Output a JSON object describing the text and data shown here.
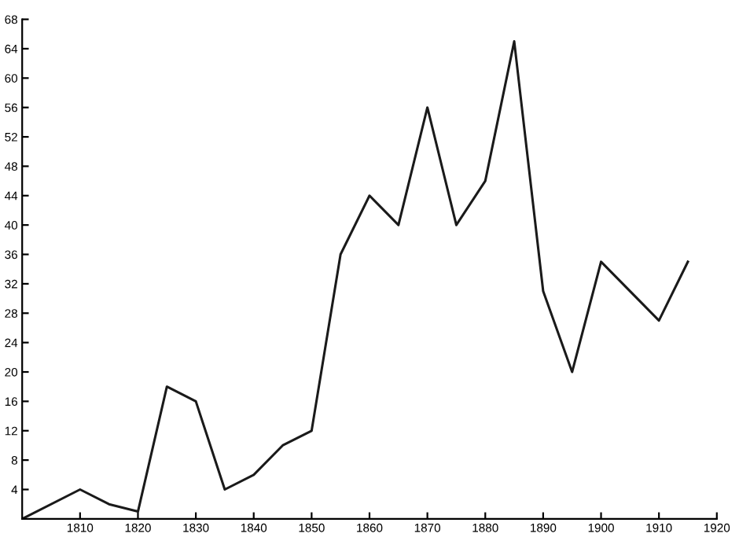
{
  "chart_data": {
    "type": "line",
    "x": [
      1800,
      1810,
      1815,
      1820,
      1825,
      1830,
      1835,
      1840,
      1845,
      1850,
      1855,
      1860,
      1865,
      1870,
      1875,
      1880,
      1885,
      1890,
      1895,
      1900,
      1910,
      1915
    ],
    "series": [
      {
        "color": "#1a1a1a",
        "values": [
          0,
          4,
          2,
          1,
          18,
          16,
          4,
          6,
          10,
          12,
          36,
          44,
          40,
          56,
          40,
          46,
          65,
          31,
          20,
          35,
          27,
          35
        ]
      }
    ],
    "xlim": [
      1800,
      1920
    ],
    "ylim": [
      0,
      68
    ],
    "xticks": [
      1810,
      1820,
      1830,
      1840,
      1850,
      1860,
      1870,
      1880,
      1890,
      1900,
      1910,
      1920
    ],
    "yticks": [
      4,
      8,
      12,
      16,
      20,
      24,
      28,
      32,
      36,
      40,
      44,
      48,
      52,
      56,
      60,
      64,
      68
    ],
    "grid": false,
    "marker": "none",
    "line_style": "solid"
  }
}
